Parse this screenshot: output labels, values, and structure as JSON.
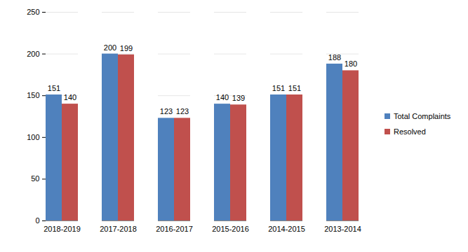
{
  "chart_data": {
    "type": "bar",
    "categories": [
      "2018-2019",
      "2017-2018",
      "2016-2017",
      "2015-2016",
      "2014-2015",
      "2013-2014"
    ],
    "series": [
      {
        "name": "Total Complaints",
        "color": "#4f81bd",
        "values": [
          151,
          200,
          123,
          140,
          151,
          188
        ]
      },
      {
        "name": "Resolved",
        "color": "#c0504d",
        "values": [
          140,
          199,
          123,
          139,
          151,
          180
        ]
      }
    ],
    "ylim": [
      0,
      250
    ],
    "yticks": [
      0,
      50,
      100,
      150,
      200,
      250
    ],
    "grid": true,
    "legend": "right",
    "data_labels": true
  }
}
